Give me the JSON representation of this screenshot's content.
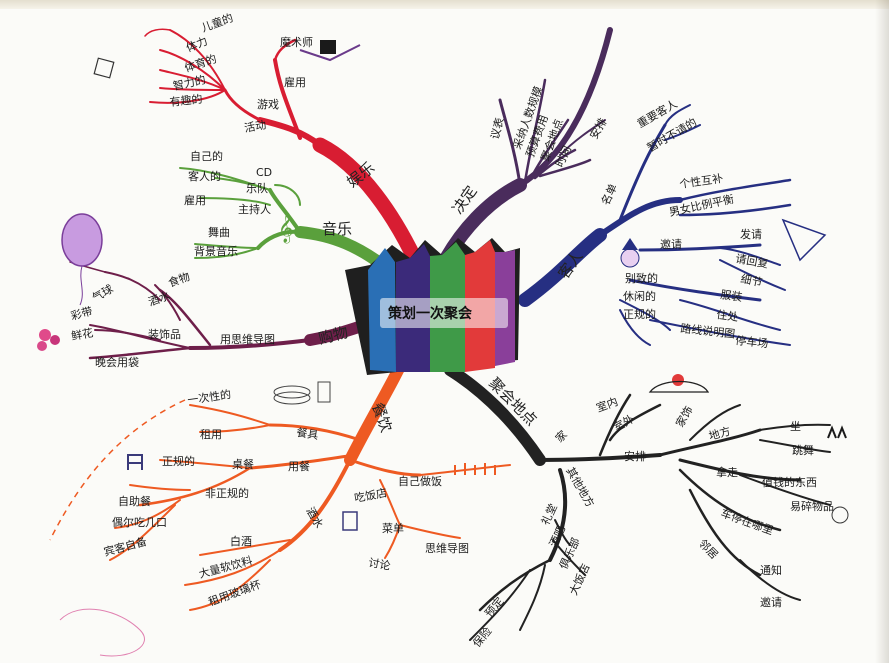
{
  "center": {
    "title": "策划一次聚会"
  },
  "branches": {
    "yule": {
      "label": "娱乐",
      "color": "#d81d32",
      "children": [
        "活动",
        "游戏",
        "雇用",
        "魔术师"
      ],
      "games": [
        "儿童的",
        "体力",
        "体育的",
        "智力的",
        "有趣的"
      ]
    },
    "jueding": {
      "label": "决定",
      "color": "#4a2c5c",
      "children": [
        "议表",
        "采纳人数规模",
        "预算费用",
        "聚会地点",
        "时间",
        "安排"
      ]
    },
    "keren": {
      "label": "客人",
      "color": "#262f82",
      "children": [
        "名单",
        "重要客人",
        "暂时不请的",
        "个性互补",
        "男女比例平衡",
        "邀请",
        "发请",
        "请回复",
        "细节",
        "服装",
        "休闲的",
        "正规的",
        "别致的",
        "住处",
        "路线说明图",
        "停车场"
      ]
    },
    "yinyue": {
      "label": "音乐",
      "color": "#5aa03c",
      "children": [
        "自己的",
        "CD",
        "客人的",
        "乐队",
        "雇用",
        "主持人",
        "舞曲",
        "背景音乐"
      ]
    },
    "gouwu": {
      "label": "购物",
      "color": "#6e1f4a",
      "children": [
        "用思维导图",
        "食物",
        "酒水",
        "装饰品",
        "彩带",
        "气球",
        "鲜花",
        "晚会用袋"
      ]
    },
    "canyin": {
      "label": "餐饮",
      "color": "#ee5a22",
      "children": [
        "餐具",
        "一次性的",
        "租用",
        "用餐",
        "桌餐",
        "正规的",
        "非正规的",
        "自助餐",
        "偶尔吃几口",
        "宾客自备",
        "酒水",
        "白酒",
        "大量软饮料",
        "租用玻璃杯",
        "吃饭店",
        "自己做饭",
        "菜单",
        "思维导图",
        "讨论"
      ]
    },
    "didian": {
      "label": "聚会地点",
      "color": "#222222",
      "children": [
        "家",
        "室内",
        "室外",
        "安排",
        "家饰",
        "地方",
        "坐",
        "跳舞",
        "拿走",
        "值钱的东西",
        "易碎物品",
        "车停在哪里",
        "邻居",
        "通知",
        "邀请",
        "其他地方",
        "礼堂",
        "酒吧",
        "俱乐部",
        "大饭店",
        "预定",
        "保险"
      ]
    }
  },
  "colors": {
    "crown": [
      "#2a6fb5",
      "#3b2a7a",
      "#3f9a48",
      "#e23a3a",
      "#8a3f9a"
    ]
  }
}
